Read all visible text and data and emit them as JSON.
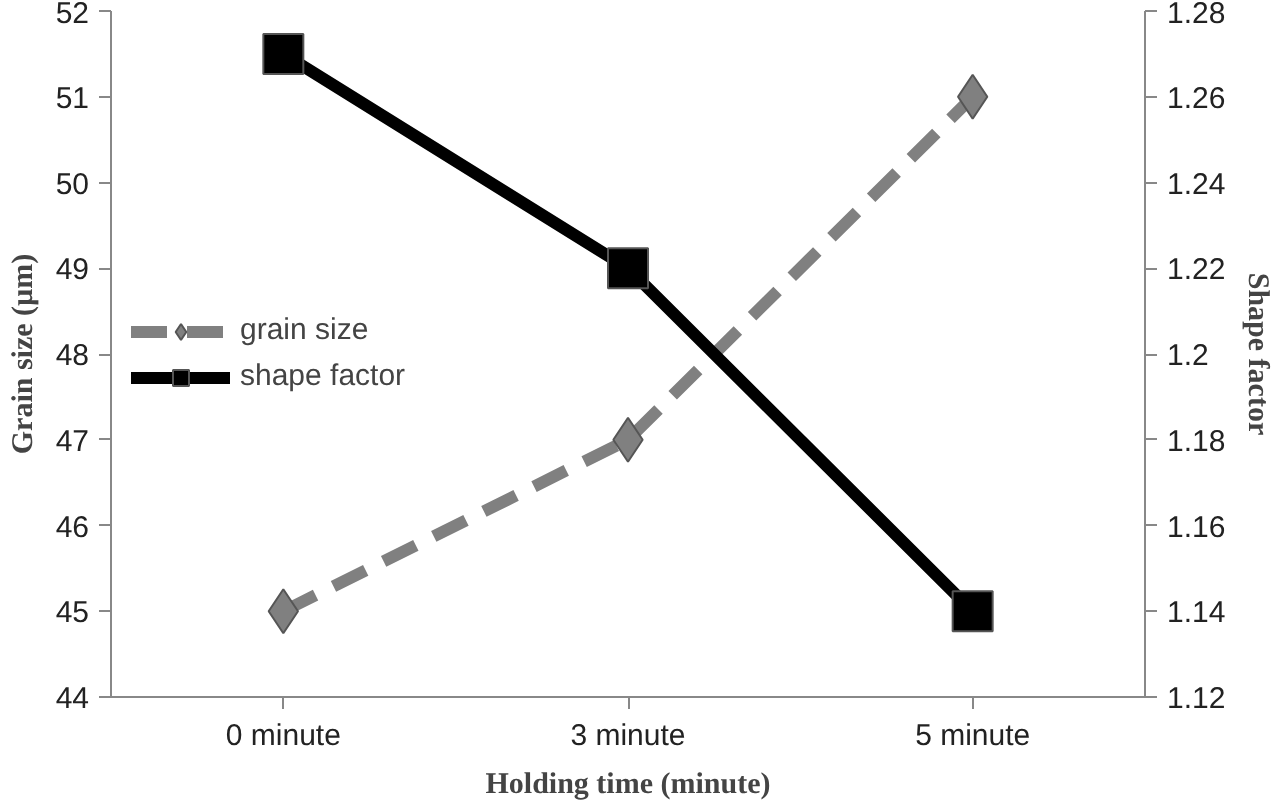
{
  "chart_data": {
    "type": "line",
    "xlabel": "Holding time (minute)",
    "ylabel": "Grain size (µm)",
    "y2label": "Shape factor",
    "categories": [
      "0 minute",
      "3 minute",
      "5 minute"
    ],
    "series": [
      {
        "name": "grain size",
        "color": "#808080",
        "values": [
          45,
          47,
          51
        ],
        "marker": "diamond",
        "line_style": "dashed"
      },
      {
        "name": "shape factor",
        "color": "#000000",
        "values": [
          1.27,
          1.22,
          1.14
        ],
        "marker": "square",
        "line_style": "solid",
        "axis": "y2"
      }
    ],
    "ylim": [
      44,
      52
    ],
    "yticks": [
      44,
      45,
      46,
      47,
      48,
      49,
      50,
      51,
      52
    ],
    "y2lim": [
      1.12,
      1.28
    ],
    "y2ticks": [
      1.12,
      1.14,
      1.16,
      1.18,
      {
        "value": 1.2,
        "label": "1.2"
      },
      1.22,
      1.24,
      1.26,
      1.28
    ],
    "grid": false,
    "legend": "left"
  }
}
